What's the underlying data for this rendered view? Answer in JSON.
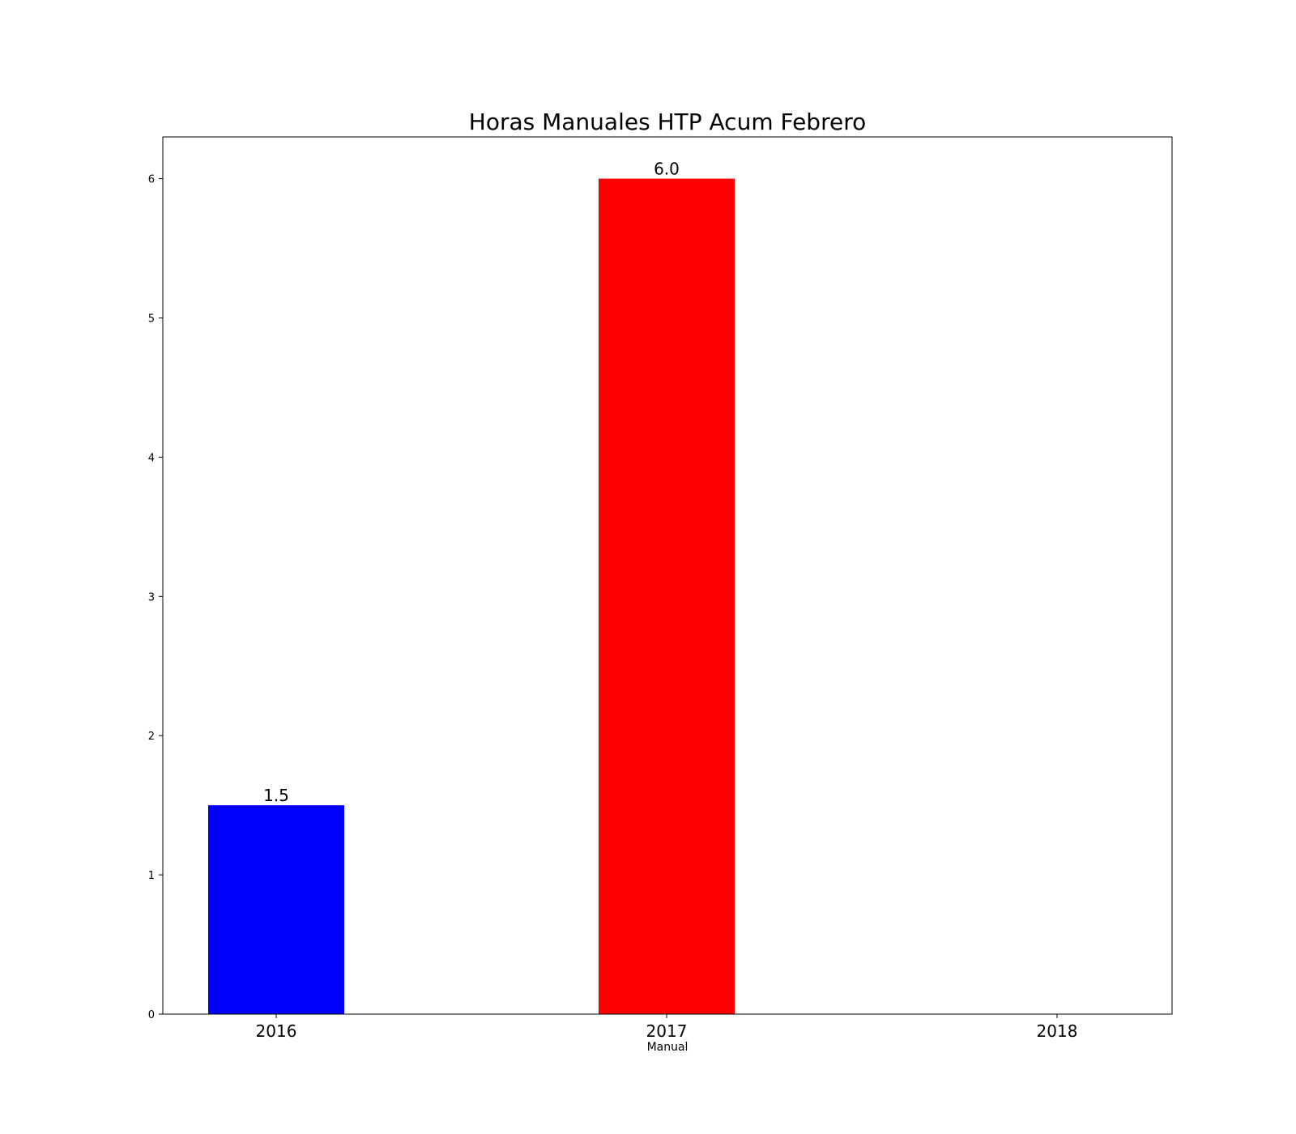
{
  "chart_data": {
    "type": "bar",
    "title": "Horas Manuales HTP Acum Febrero",
    "xlabel": "Manual",
    "ylabel": "",
    "categories": [
      "2016",
      "2017",
      "2018"
    ],
    "values": [
      1.5,
      6.0,
      0
    ],
    "value_labels": [
      "1.5",
      "6.0",
      ""
    ],
    "bar_colors": [
      "#0000ff",
      "#ff0000",
      "#00aa00"
    ],
    "ylim": [
      0,
      6.3
    ],
    "yticks": [
      0,
      1,
      2,
      3,
      4,
      5,
      6
    ],
    "ytick_labels": [
      "0",
      "1",
      "2",
      "3",
      "4",
      "5",
      "6"
    ],
    "grid": false,
    "legend": "none"
  }
}
